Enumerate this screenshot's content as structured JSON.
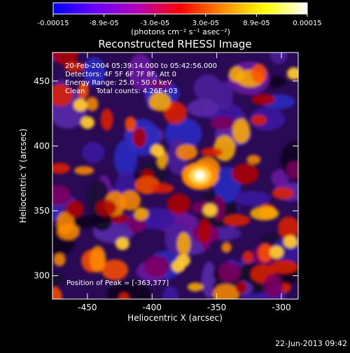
{
  "colorbar": {
    "tick_labels": [
      "-0.00015",
      "-8.9e-05",
      "-3.0e-05",
      "3.0e-05",
      "8.9e-05",
      "0.00015"
    ],
    "unit_label": "(photons cm⁻² s⁻¹ asec⁻²)",
    "stops": [
      "#0000ff",
      "#6a00ff",
      "#b400b4",
      "#ff0000",
      "#ff8c00",
      "#ffff00",
      "#ffffff"
    ]
  },
  "image": {
    "title": "Reconstructed RHESSI Image",
    "info_lines": [
      "20-Feb-2004 05:39:14.000 to 05:42:56.000",
      "Detectors: 4F 5F 6F 7F 8F, Att 0",
      "Energy Range: 25.0 - 50.0 keV",
      "Clean     Total counts: 4.26E+03"
    ],
    "peak_label": "Position of Peak = [-363,377]",
    "x_axis_label": "Heliocentric X (arcsec)",
    "y_axis_label": "Heliocentric Y (arcsec)",
    "x_ticks": [
      "-450",
      "-400",
      "-350",
      "-300"
    ],
    "y_ticks": [
      "300",
      "350",
      "400",
      "450"
    ],
    "xlim": [
      -477,
      -287
    ],
    "ylim": [
      282,
      472
    ],
    "peak": [
      -363,
      377
    ]
  },
  "footer": {
    "timestamp": "22-Jun-2013 09:42"
  }
}
